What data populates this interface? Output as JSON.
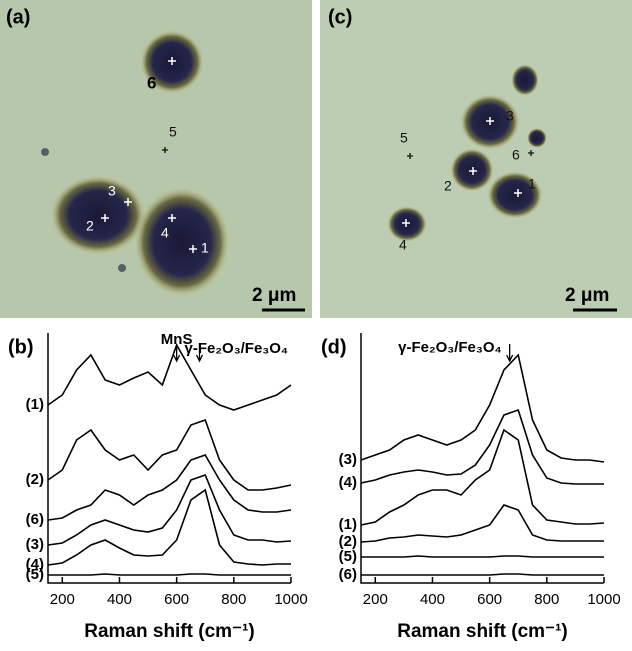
{
  "micrographs": [
    {
      "label": "(a)",
      "markers": [
        "6",
        "5",
        "3",
        "2",
        "4",
        "1"
      ],
      "scale_bar": "2 μm"
    },
    {
      "label": "(c)",
      "markers": [
        "3",
        "6",
        "5",
        "2",
        "1",
        "4"
      ],
      "scale_bar": "2 μm"
    }
  ],
  "chart_data": [
    {
      "type": "line",
      "title": "(b)",
      "x_label": "Raman shift (cm⁻¹)",
      "x": [
        150,
        200,
        250,
        300,
        350,
        400,
        450,
        500,
        550,
        600,
        650,
        700,
        750,
        800,
        850,
        900,
        950,
        1000
      ],
      "xlim": [
        150,
        1000
      ],
      "xticks": [
        200,
        400,
        600,
        800,
        1000
      ],
      "ylim": [
        0,
        250
      ],
      "color": "#000000",
      "annotations": [
        {
          "text": "MnS",
          "x": 600
        },
        {
          "text": "γ-Fe₂O₃/Fe₃O₄",
          "x": 680
        }
      ],
      "series": [
        {
          "name": "(1)",
          "values": [
            178,
            188,
            213,
            228,
            203,
            198,
            205,
            211,
            198,
            238,
            213,
            188,
            178,
            173,
            178,
            183,
            188,
            198
          ]
        },
        {
          "name": "(2)",
          "values": [
            103,
            113,
            143,
            153,
            133,
            123,
            128,
            113,
            128,
            133,
            158,
            163,
            123,
            103,
            93,
            93,
            95,
            98
          ]
        },
        {
          "name": "(6)",
          "values": [
            63,
            65,
            73,
            78,
            93,
            88,
            78,
            88,
            93,
            103,
            123,
            128,
            103,
            83,
            73,
            71,
            71,
            73
          ]
        },
        {
          "name": "(3)",
          "values": [
            38,
            40,
            48,
            58,
            63,
            58,
            53,
            51,
            55,
            73,
            103,
            108,
            73,
            48,
            43,
            43,
            41,
            42
          ]
        },
        {
          "name": "(4)",
          "values": [
            18,
            20,
            28,
            38,
            43,
            35,
            28,
            27,
            28,
            43,
            83,
            93,
            38,
            21,
            19,
            18,
            19,
            19
          ]
        },
        {
          "name": "(5)",
          "values": [
            8,
            8,
            8,
            8,
            9,
            8,
            8,
            8,
            8,
            8,
            9,
            9,
            8,
            8,
            8,
            8,
            8,
            8
          ]
        }
      ]
    },
    {
      "type": "line",
      "title": "(d)",
      "x_label": "Raman shift (cm⁻¹)",
      "x": [
        150,
        200,
        250,
        300,
        350,
        400,
        450,
        500,
        550,
        600,
        650,
        700,
        750,
        800,
        850,
        900,
        950,
        1000
      ],
      "xlim": [
        150,
        1000
      ],
      "xticks": [
        200,
        400,
        600,
        800,
        1000
      ],
      "ylim": [
        0,
        250
      ],
      "color": "#000000",
      "annotations": [
        {
          "text": "γ-Fe₂O₃/Fe₃O₄",
          "x": 670
        }
      ],
      "series": [
        {
          "name": "(3)",
          "values": [
            123,
            128,
            133,
            143,
            148,
            143,
            138,
            143,
            153,
            178,
            213,
            228,
            163,
            133,
            125,
            123,
            123,
            121
          ]
        },
        {
          "name": "(4)",
          "values": [
            100,
            103,
            108,
            111,
            113,
            111,
            108,
            109,
            118,
            138,
            168,
            173,
            128,
            105,
            100,
            99,
            99,
            99
          ]
        },
        {
          "name": "(1)",
          "values": [
            58,
            61,
            71,
            78,
            88,
            93,
            93,
            88,
            103,
            113,
            153,
            143,
            78,
            63,
            61,
            59,
            59,
            60
          ]
        },
        {
          "name": "(2)",
          "values": [
            41,
            42,
            45,
            46,
            48,
            47,
            46,
            48,
            53,
            58,
            78,
            73,
            48,
            43,
            42,
            42,
            42,
            42
          ]
        },
        {
          "name": "(5)",
          "values": [
            26,
            26,
            26,
            26,
            27,
            26,
            26,
            26,
            26,
            26,
            27,
            27,
            26,
            26,
            26,
            26,
            26,
            26
          ]
        },
        {
          "name": "(6)",
          "values": [
            8,
            8,
            8,
            8,
            8,
            8,
            8,
            8,
            8,
            8,
            9,
            9,
            8,
            8,
            8,
            8,
            8,
            8
          ]
        }
      ]
    }
  ]
}
